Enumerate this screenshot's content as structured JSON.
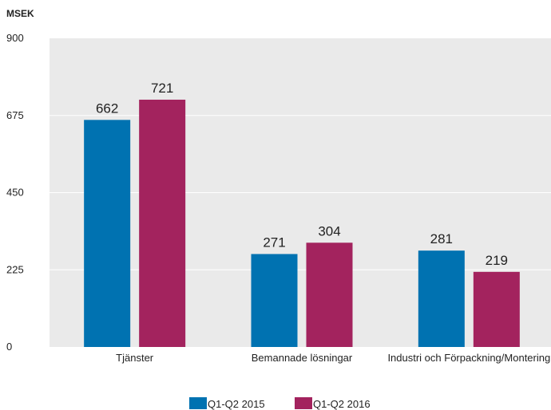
{
  "chart_data": {
    "type": "bar",
    "ylabel": "MSEK",
    "ylim": [
      0,
      900
    ],
    "yticks": [
      "0",
      "225",
      "450",
      "675",
      "900"
    ],
    "categories": [
      "Tjänster",
      "Bemannade lösningar",
      "Industri och Förpackning/Montering"
    ],
    "series": [
      {
        "name": "Q1-Q2 2015",
        "values": [
          662,
          271,
          281
        ],
        "color": "#0072b1"
      },
      {
        "name": "Q1-Q2 2016",
        "values": [
          721,
          304,
          219
        ],
        "color": "#a3235e"
      }
    ],
    "plot_background": "#eaeaea",
    "grid": true,
    "legend_position": "bottom"
  }
}
